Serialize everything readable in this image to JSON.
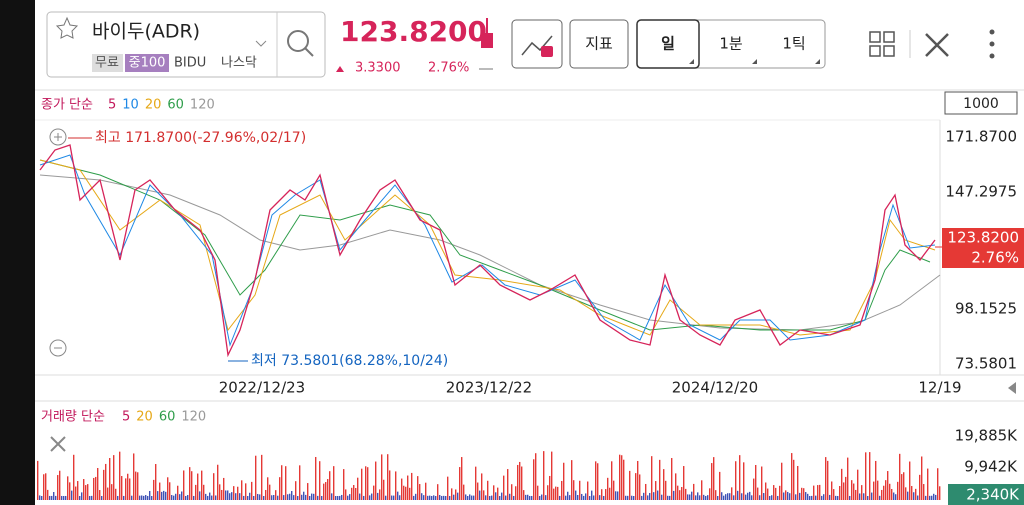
{
  "header": {
    "stock_name": "바이두(ADR)",
    "tags": [
      "무료",
      "중100",
      "BIDU",
      "나스닥"
    ],
    "price": "123.8200",
    "change": "3.3300",
    "change_pct": "2.76%",
    "buttons": [
      "지표",
      "일",
      "1분",
      "1틱"
    ]
  },
  "price_chart": {
    "legend_label": "종가 단순",
    "ma": [
      "5",
      "10",
      "20",
      "60",
      "120"
    ],
    "count": "1000",
    "high_label": "최고 171.8700(-27.96%,02/17)",
    "low_label": "최저 73.5801(68.28%,10/24)",
    "y_labels": [
      "171.8700",
      "147.2975",
      "98.1525",
      "73.5801"
    ],
    "current_price": "123.8200",
    "current_pct": "2.76%",
    "x_labels": [
      "2022/12/23",
      "2023/12/22",
      "2024/12/20",
      "12/19"
    ]
  },
  "volume_chart": {
    "legend_label": "거래량 단순",
    "ma": [
      "5",
      "20",
      "60",
      "120"
    ],
    "y_labels": [
      "19,885K",
      "9,942K"
    ],
    "current": "2,340K"
  }
}
